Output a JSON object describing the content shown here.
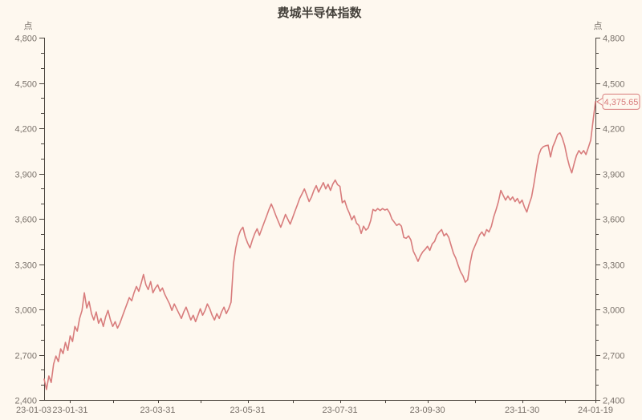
{
  "chart": {
    "title": "费城半导体指数",
    "unit_label": "点",
    "last_value_label": "4,375.65",
    "colors": {
      "background": "#fef8ef",
      "line": "#d87c7c",
      "axis": "#4b453e",
      "label": "#79716a",
      "title": "#45413b",
      "badge_border": "#d87c7c",
      "badge_text": "#d87c7c",
      "badge_fill": "#fef8ef"
    }
  },
  "chart_data": {
    "type": "line",
    "title": "费城半导体指数",
    "ylabel": "点",
    "ylim": [
      2400,
      4800
    ],
    "y_tick_interval": 300,
    "y_minor_tick_interval": 100,
    "grid": false,
    "legend": "none",
    "x_range": [
      "2023-01-03",
      "2024-01-19"
    ],
    "x_tick_labels": [
      "23-01-03",
      "23-01-31",
      "23-03-31",
      "23-05-31",
      "23-07-31",
      "23-09-30",
      "23-11-30",
      "24-01-19"
    ],
    "last_value": 4375.65,
    "points": [
      [
        "2023-01-03",
        2538
      ],
      [
        "2023-01-05",
        2469
      ],
      [
        "2023-01-07",
        2559
      ],
      [
        "2023-01-09",
        2516
      ],
      [
        "2023-01-11",
        2638
      ],
      [
        "2023-01-14",
        2691
      ],
      [
        "2023-01-17",
        2654
      ],
      [
        "2023-01-19",
        2739
      ],
      [
        "2023-01-22",
        2707
      ],
      [
        "2023-01-24",
        2781
      ],
      [
        "2023-01-27",
        2728
      ],
      [
        "2023-01-29",
        2824
      ],
      [
        "2023-02-01",
        2787
      ],
      [
        "2023-02-02",
        2887
      ],
      [
        "2023-02-04",
        2856
      ],
      [
        "2023-02-05",
        2940
      ],
      [
        "2023-02-07",
        2993
      ],
      [
        "2023-02-09",
        3110
      ],
      [
        "2023-02-10",
        3009
      ],
      [
        "2023-02-12",
        3052
      ],
      [
        "2023-02-14",
        2972
      ],
      [
        "2023-02-15",
        2930
      ],
      [
        "2023-02-17",
        2983
      ],
      [
        "2023-02-19",
        2908
      ],
      [
        "2023-02-20",
        2940
      ],
      [
        "2023-02-22",
        2887
      ],
      [
        "2023-02-23",
        2951
      ],
      [
        "2023-02-25",
        2993
      ],
      [
        "2023-02-27",
        2930
      ],
      [
        "2023-02-28",
        2887
      ],
      [
        "2023-03-02",
        2919
      ],
      [
        "2023-03-04",
        2876
      ],
      [
        "2023-03-05",
        2908
      ],
      [
        "2023-03-07",
        2951
      ],
      [
        "2023-03-08",
        2993
      ],
      [
        "2023-03-10",
        3036
      ],
      [
        "2023-03-12",
        3078
      ],
      [
        "2023-03-13",
        3057
      ],
      [
        "2023-03-15",
        3110
      ],
      [
        "2023-03-17",
        3152
      ],
      [
        "2023-03-18",
        3120
      ],
      [
        "2023-03-20",
        3173
      ],
      [
        "2023-03-21",
        3231
      ],
      [
        "2023-03-23",
        3163
      ],
      [
        "2023-03-25",
        3131
      ],
      [
        "2023-03-26",
        3184
      ],
      [
        "2023-03-28",
        3110
      ],
      [
        "2023-03-29",
        3142
      ],
      [
        "2023-03-31",
        3163
      ],
      [
        "2023-04-02",
        3120
      ],
      [
        "2023-04-04",
        3142
      ],
      [
        "2023-04-05",
        3099
      ],
      [
        "2023-04-07",
        3068
      ],
      [
        "2023-04-09",
        3036
      ],
      [
        "2023-04-10",
        2993
      ],
      [
        "2023-04-12",
        3036
      ],
      [
        "2023-04-13",
        3004
      ],
      [
        "2023-04-15",
        2972
      ],
      [
        "2023-04-17",
        2940
      ],
      [
        "2023-04-18",
        2983
      ],
      [
        "2023-04-20",
        3015
      ],
      [
        "2023-04-21",
        2972
      ],
      [
        "2023-04-23",
        2930
      ],
      [
        "2023-04-25",
        2961
      ],
      [
        "2023-04-26",
        2919
      ],
      [
        "2023-04-28",
        2961
      ],
      [
        "2023-04-29",
        3004
      ],
      [
        "2023-05-01",
        2961
      ],
      [
        "2023-05-03",
        2993
      ],
      [
        "2023-05-04",
        3036
      ],
      [
        "2023-05-06",
        3004
      ],
      [
        "2023-05-07",
        2961
      ],
      [
        "2023-05-09",
        2930
      ],
      [
        "2023-05-11",
        2972
      ],
      [
        "2023-05-12",
        2940
      ],
      [
        "2023-05-14",
        2983
      ],
      [
        "2023-05-15",
        3015
      ],
      [
        "2023-05-17",
        2972
      ],
      [
        "2023-05-19",
        3004
      ],
      [
        "2023-05-20",
        3047
      ],
      [
        "2023-05-22",
        3301
      ],
      [
        "2023-05-23",
        3407
      ],
      [
        "2023-05-24",
        3481
      ],
      [
        "2023-05-25",
        3523
      ],
      [
        "2023-05-27",
        3544
      ],
      [
        "2023-05-28",
        3481
      ],
      [
        "2023-05-30",
        3439
      ],
      [
        "2023-06-01",
        3407
      ],
      [
        "2023-06-02",
        3460
      ],
      [
        "2023-06-04",
        3502
      ],
      [
        "2023-06-05",
        3534
      ],
      [
        "2023-06-07",
        3491
      ],
      [
        "2023-06-09",
        3534
      ],
      [
        "2023-06-10",
        3576
      ],
      [
        "2023-06-12",
        3618
      ],
      [
        "2023-06-13",
        3661
      ],
      [
        "2023-06-15",
        3698
      ],
      [
        "2023-06-17",
        3661
      ],
      [
        "2023-06-18",
        3618
      ],
      [
        "2023-06-20",
        3581
      ],
      [
        "2023-06-21",
        3544
      ],
      [
        "2023-06-23",
        3586
      ],
      [
        "2023-06-25",
        3629
      ],
      [
        "2023-06-26",
        3597
      ],
      [
        "2023-06-28",
        3565
      ],
      [
        "2023-06-29",
        3607
      ],
      [
        "2023-07-01",
        3650
      ],
      [
        "2023-07-03",
        3692
      ],
      [
        "2023-07-04",
        3735
      ],
      [
        "2023-07-06",
        3766
      ],
      [
        "2023-07-07",
        3798
      ],
      [
        "2023-07-09",
        3756
      ],
      [
        "2023-07-11",
        3714
      ],
      [
        "2023-07-12",
        3745
      ],
      [
        "2023-07-14",
        3788
      ],
      [
        "2023-07-15",
        3820
      ],
      [
        "2023-07-17",
        3777
      ],
      [
        "2023-07-19",
        3808
      ],
      [
        "2023-07-20",
        3840
      ],
      [
        "2023-07-22",
        3798
      ],
      [
        "2023-07-23",
        3829
      ],
      [
        "2023-07-25",
        3788
      ],
      [
        "2023-07-27",
        3830
      ],
      [
        "2023-07-28",
        3857
      ],
      [
        "2023-07-30",
        3826
      ],
      [
        "2023-07-31",
        3815
      ],
      [
        "2023-08-02",
        3706
      ],
      [
        "2023-08-03",
        3721
      ],
      [
        "2023-08-05",
        3672
      ],
      [
        "2023-08-07",
        3636
      ],
      [
        "2023-08-08",
        3593
      ],
      [
        "2023-08-10",
        3620
      ],
      [
        "2023-08-11",
        3572
      ],
      [
        "2023-08-13",
        3556
      ],
      [
        "2023-08-15",
        3503
      ],
      [
        "2023-08-16",
        3551
      ],
      [
        "2023-08-18",
        3525
      ],
      [
        "2023-08-20",
        3540
      ],
      [
        "2023-08-21",
        3588
      ],
      [
        "2023-08-23",
        3662
      ],
      [
        "2023-08-25",
        3652
      ],
      [
        "2023-08-26",
        3668
      ],
      [
        "2023-08-28",
        3655
      ],
      [
        "2023-08-29",
        3668
      ],
      [
        "2023-08-31",
        3658
      ],
      [
        "2023-09-02",
        3665
      ],
      [
        "2023-09-03",
        3640
      ],
      [
        "2023-09-05",
        3598
      ],
      [
        "2023-09-07",
        3577
      ],
      [
        "2023-09-08",
        3556
      ],
      [
        "2023-09-10",
        3567
      ],
      [
        "2023-09-12",
        3551
      ],
      [
        "2023-09-13",
        3477
      ],
      [
        "2023-09-15",
        3471
      ],
      [
        "2023-09-16",
        3487
      ],
      [
        "2023-09-18",
        3460
      ],
      [
        "2023-09-20",
        3386
      ],
      [
        "2023-09-21",
        3354
      ],
      [
        "2023-09-23",
        3318
      ],
      [
        "2023-09-25",
        3354
      ],
      [
        "2023-09-26",
        3381
      ],
      [
        "2023-09-28",
        3397
      ],
      [
        "2023-09-29",
        3418
      ],
      [
        "2023-10-01",
        3391
      ],
      [
        "2023-10-03",
        3434
      ],
      [
        "2023-10-04",
        3450
      ],
      [
        "2023-10-06",
        3492
      ],
      [
        "2023-10-07",
        3513
      ],
      [
        "2023-10-09",
        3529
      ],
      [
        "2023-10-10",
        3487
      ],
      [
        "2023-10-12",
        3503
      ],
      [
        "2023-10-13",
        3477
      ],
      [
        "2023-10-15",
        3424
      ],
      [
        "2023-10-16",
        3371
      ],
      [
        "2023-10-18",
        3339
      ],
      [
        "2023-10-20",
        3291
      ],
      [
        "2023-10-21",
        3249
      ],
      [
        "2023-10-23",
        3222
      ],
      [
        "2023-10-24",
        3180
      ],
      [
        "2023-10-26",
        3196
      ],
      [
        "2023-10-27",
        3302
      ],
      [
        "2023-10-29",
        3381
      ],
      [
        "2023-10-30",
        3418
      ],
      [
        "2023-11-01",
        3455
      ],
      [
        "2023-11-03",
        3492
      ],
      [
        "2023-11-04",
        3513
      ],
      [
        "2023-11-06",
        3487
      ],
      [
        "2023-11-07",
        3529
      ],
      [
        "2023-11-09",
        3513
      ],
      [
        "2023-11-11",
        3550
      ],
      [
        "2023-11-12",
        3613
      ],
      [
        "2023-11-14",
        3661
      ],
      [
        "2023-11-15",
        3714
      ],
      [
        "2023-11-17",
        3788
      ],
      [
        "2023-11-18",
        3756
      ],
      [
        "2023-11-20",
        3724
      ],
      [
        "2023-11-22",
        3751
      ],
      [
        "2023-11-23",
        3724
      ],
      [
        "2023-11-25",
        3745
      ],
      [
        "2023-11-26",
        3714
      ],
      [
        "2023-11-28",
        3735
      ],
      [
        "2023-11-29",
        3703
      ],
      [
        "2023-11-30",
        3724
      ],
      [
        "2023-12-02",
        3678
      ],
      [
        "2023-12-03",
        3645
      ],
      [
        "2023-12-05",
        3698
      ],
      [
        "2023-12-07",
        3745
      ],
      [
        "2023-12-08",
        3830
      ],
      [
        "2023-12-10",
        3930
      ],
      [
        "2023-12-12",
        4020
      ],
      [
        "2023-12-13",
        4062
      ],
      [
        "2023-12-15",
        4078
      ],
      [
        "2023-12-17",
        4084
      ],
      [
        "2023-12-18",
        4088
      ],
      [
        "2023-12-20",
        4010
      ],
      [
        "2023-12-22",
        4078
      ],
      [
        "2023-12-23",
        4115
      ],
      [
        "2023-12-25",
        4158
      ],
      [
        "2023-12-27",
        4170
      ],
      [
        "2023-12-28",
        4136
      ],
      [
        "2023-12-30",
        4084
      ],
      [
        "2024-01-01",
        4010
      ],
      [
        "2024-01-03",
        3947
      ],
      [
        "2024-01-05",
        3904
      ],
      [
        "2024-01-07",
        3967
      ],
      [
        "2024-01-08",
        4020
      ],
      [
        "2024-01-10",
        4052
      ],
      [
        "2024-01-12",
        4031
      ],
      [
        "2024-01-13",
        4052
      ],
      [
        "2024-01-15",
        4026
      ],
      [
        "2024-01-16",
        4073
      ],
      [
        "2024-01-17",
        4121
      ],
      [
        "2024-01-18",
        4253
      ],
      [
        "2024-01-19",
        4375.65
      ]
    ]
  }
}
